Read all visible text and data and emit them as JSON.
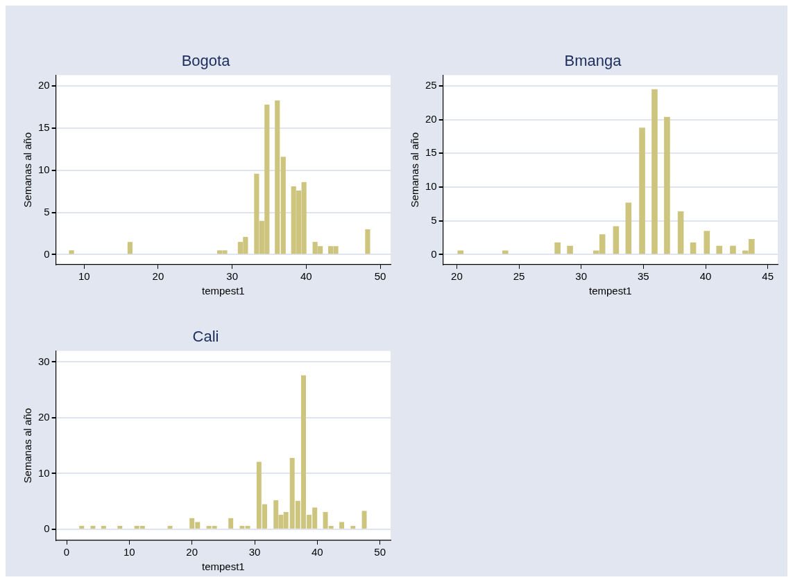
{
  "chart_data": [
    {
      "type": "bar",
      "title": "Bogota",
      "xlabel": "tempest1",
      "ylabel": "Semanas al año",
      "color": "#cdc47e",
      "grid": "y",
      "legend": false,
      "x": [
        8.3,
        16.2,
        28.3,
        29.0,
        31.1,
        31.8,
        33.3,
        34.0,
        34.7,
        36.1,
        36.9,
        38.3,
        39.0,
        39.7,
        41.2,
        41.9,
        43.3,
        44.0,
        48.3
      ],
      "values": [
        0.5,
        1.5,
        0.5,
        0.5,
        1.5,
        2.1,
        9.6,
        4.0,
        17.8,
        18.3,
        11.6,
        8.1,
        7.6,
        8.6,
        1.5,
        1.0,
        1.0,
        1.0,
        3.0
      ],
      "xlim": [
        6.2,
        51.4
      ],
      "xticks": [
        10,
        20,
        30,
        40,
        50
      ],
      "ylim": [
        -1.2,
        21.3
      ],
      "yticks": [
        0,
        5,
        10,
        15,
        20
      ]
    },
    {
      "type": "bar",
      "title": "Bmanga",
      "xlabel": "tempest1",
      "ylabel": "Semanas al año",
      "color": "#cdc47e",
      "grid": "y",
      "legend": false,
      "x": [
        20.3,
        23.9,
        28.1,
        29.1,
        31.2,
        31.7,
        32.8,
        33.8,
        34.9,
        35.9,
        36.9,
        38.0,
        39.0,
        40.1,
        41.1,
        42.2,
        43.2,
        43.7
      ],
      "values": [
        0.6,
        0.6,
        1.8,
        1.3,
        0.6,
        3.0,
        4.2,
        7.7,
        18.8,
        24.5,
        20.4,
        6.4,
        1.8,
        3.5,
        1.3,
        1.3,
        0.6,
        2.3
      ],
      "xlim": [
        18.9,
        45.8
      ],
      "xticks": [
        20,
        25,
        30,
        35,
        40,
        45
      ],
      "ylim": [
        -1.5,
        26.6
      ],
      "yticks": [
        0,
        5,
        10,
        15,
        20,
        25
      ]
    },
    {
      "type": "bar",
      "title": "Cali",
      "xlabel": "tempest1",
      "ylabel": "Semanas al año",
      "color": "#cdc47e",
      "grid": "y",
      "legend": false,
      "x": [
        2.4,
        4.2,
        5.9,
        8.5,
        11.2,
        12.1,
        16.5,
        20.0,
        20.9,
        22.7,
        23.6,
        26.2,
        28.0,
        28.9,
        30.7,
        31.6,
        33.4,
        34.2,
        35.0,
        36.0,
        36.9,
        37.8,
        38.7,
        39.6,
        41.3,
        42.2,
        43.9,
        45.7,
        47.5
      ],
      "values": [
        0.6,
        0.6,
        0.6,
        0.6,
        0.6,
        0.6,
        0.6,
        2.0,
        1.3,
        0.6,
        0.6,
        2.0,
        0.6,
        0.6,
        12.1,
        4.5,
        5.2,
        2.6,
        3.1,
        12.8,
        5.1,
        27.6,
        2.6,
        3.9,
        3.1,
        0.6,
        1.3,
        0.6,
        3.3
      ],
      "xlim": [
        -1.7,
        51.7
      ],
      "xticks": [
        0,
        10,
        20,
        30,
        40,
        50
      ],
      "ylim": [
        -2.0,
        32.0
      ],
      "yticks": [
        0,
        10,
        20,
        30
      ]
    }
  ]
}
